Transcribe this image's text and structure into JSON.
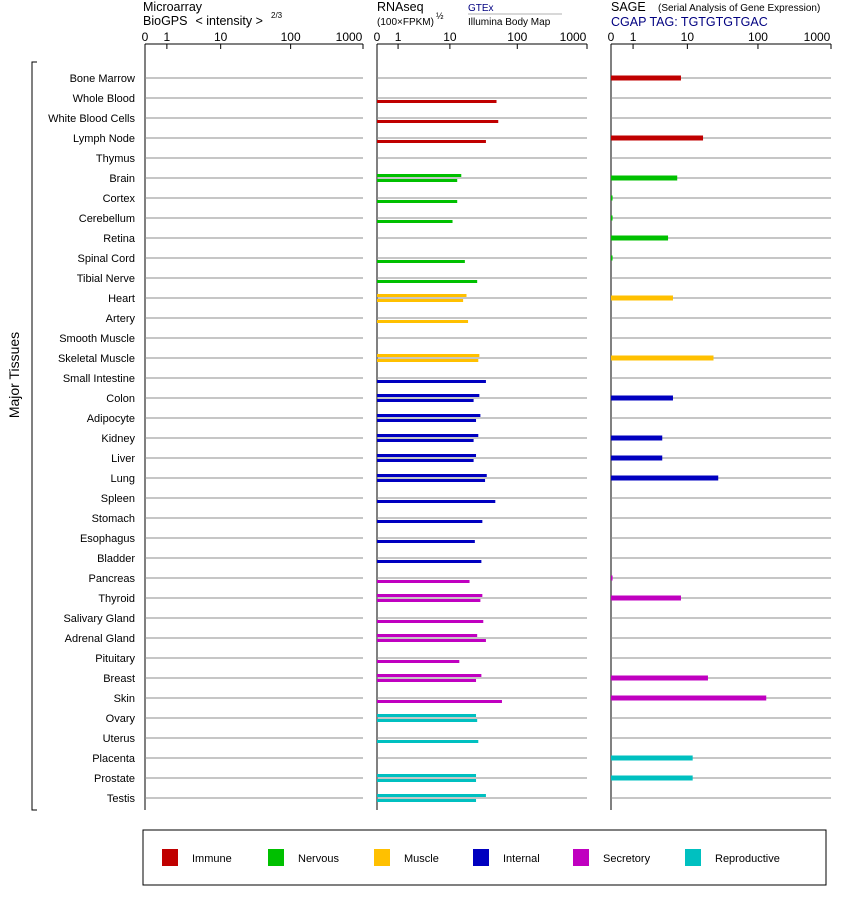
{
  "headers": {
    "microarray": {
      "line1": "Microarray",
      "line2_prefix": "BioGPS",
      "line2_suffix": "< intensity >",
      "exponent": "2/3"
    },
    "rnaseq": {
      "line1": "RNAseq",
      "line2_prefix": "(100×FPKM)",
      "exponent": "½",
      "gtex": "GTEx",
      "illumina": "Illumina Body Map"
    },
    "sage": {
      "line1": "SAGE",
      "subtitle": "(Serial Analysis of Gene Expression)",
      "tag": "CGAP TAG: TGTGTGTGAC"
    }
  },
  "y_axis_label": "Major Tissues",
  "tick_labels": [
    "0",
    "1",
    "10",
    "100",
    "1000"
  ],
  "colors": {
    "Immune": "#c00000",
    "Nervous": "#00c000",
    "Muscle": "#ffc000",
    "Internal": "#0000c0",
    "Secretory": "#c000c0",
    "Reproductive": "#00c0c0"
  },
  "legend": [
    {
      "label": "Immune",
      "color": "#c00000"
    },
    {
      "label": "Nervous",
      "color": "#00c000"
    },
    {
      "label": "Muscle",
      "color": "#ffc000"
    },
    {
      "label": "Internal",
      "color": "#0000c0"
    },
    {
      "label": "Secretory",
      "color": "#c000c0"
    },
    {
      "label": "Reproductive",
      "color": "#00c0c0"
    }
  ],
  "chart_data": {
    "type": "bar",
    "orientation": "horizontal",
    "x_scale": "log (value+1)",
    "xlim": [
      0,
      1000
    ],
    "panels": [
      "Microarray",
      "RNAseq",
      "SAGE"
    ],
    "tissues": [
      {
        "name": "Bone Marrow",
        "group": "Immune",
        "microarray": [],
        "rnaseq": [],
        "sage": [
          8
        ]
      },
      {
        "name": "Whole Blood",
        "group": "Immune",
        "microarray": [],
        "rnaseq": [
          50
        ],
        "sage": []
      },
      {
        "name": "White Blood Cells",
        "group": "Immune",
        "microarray": [],
        "rnaseq": [
          53
        ],
        "sage": []
      },
      {
        "name": "Lymph Node",
        "group": "Immune",
        "microarray": [],
        "rnaseq": [
          35
        ],
        "sage": [
          17
        ]
      },
      {
        "name": "Thymus",
        "group": "Immune",
        "microarray": [],
        "rnaseq": [],
        "sage": []
      },
      {
        "name": "Brain",
        "group": "Nervous",
        "microarray": [],
        "rnaseq": [
          15,
          13
        ],
        "sage": [
          7
        ]
      },
      {
        "name": "Cortex",
        "group": "Nervous",
        "microarray": [],
        "rnaseq": [
          13
        ],
        "sage": [
          0.05
        ]
      },
      {
        "name": "Cerebellum",
        "group": "Nervous",
        "microarray": [],
        "rnaseq": [
          11
        ],
        "sage": [
          0.05
        ]
      },
      {
        "name": "Retina",
        "group": "Nervous",
        "microarray": [],
        "rnaseq": [],
        "sage": [
          5
        ]
      },
      {
        "name": "Spinal Cord",
        "group": "Nervous",
        "microarray": [],
        "rnaseq": [
          17
        ],
        "sage": [
          0.05
        ]
      },
      {
        "name": "Tibial Nerve",
        "group": "Nervous",
        "microarray": [],
        "rnaseq": [
          26
        ],
        "sage": []
      },
      {
        "name": "Heart",
        "group": "Muscle",
        "microarray": [],
        "rnaseq": [
          18,
          16
        ],
        "sage": [
          6
        ]
      },
      {
        "name": "Artery",
        "group": "Muscle",
        "microarray": [],
        "rnaseq": [
          19
        ],
        "sage": []
      },
      {
        "name": "Smooth Muscle",
        "group": "Muscle",
        "microarray": [],
        "rnaseq": [],
        "sage": []
      },
      {
        "name": "Skeletal Muscle",
        "group": "Muscle",
        "microarray": [],
        "rnaseq": [
          28,
          27
        ],
        "sage": [
          24
        ]
      },
      {
        "name": "Small Intestine",
        "group": "Internal",
        "microarray": [],
        "rnaseq": [
          35
        ],
        "sage": []
      },
      {
        "name": "Colon",
        "group": "Internal",
        "microarray": [],
        "rnaseq": [
          28,
          23
        ],
        "sage": [
          6
        ]
      },
      {
        "name": "Adipocyte",
        "group": "Internal",
        "microarray": [],
        "rnaseq": [
          29,
          25
        ],
        "sage": []
      },
      {
        "name": "Kidney",
        "group": "Internal",
        "microarray": [],
        "rnaseq": [
          27,
          23
        ],
        "sage": [
          4
        ]
      },
      {
        "name": "Liver",
        "group": "Internal",
        "microarray": [],
        "rnaseq": [
          25,
          23
        ],
        "sage": [
          4
        ]
      },
      {
        "name": "Lung",
        "group": "Internal",
        "microarray": [],
        "rnaseq": [
          36,
          34
        ],
        "sage": [
          28
        ]
      },
      {
        "name": "Spleen",
        "group": "Internal",
        "microarray": [],
        "rnaseq": [
          48
        ],
        "sage": []
      },
      {
        "name": "Stomach",
        "group": "Internal",
        "microarray": [],
        "rnaseq": [
          31
        ],
        "sage": []
      },
      {
        "name": "Esophagus",
        "group": "Internal",
        "microarray": [],
        "rnaseq": [
          24
        ],
        "sage": []
      },
      {
        "name": "Bladder",
        "group": "Internal",
        "microarray": [],
        "rnaseq": [
          30
        ],
        "sage": []
      },
      {
        "name": "Pancreas",
        "group": "Secretory",
        "microarray": [],
        "rnaseq": [
          20
        ],
        "sage": [
          0.05
        ]
      },
      {
        "name": "Thyroid",
        "group": "Secretory",
        "microarray": [],
        "rnaseq": [
          31,
          29
        ],
        "sage": [
          8
        ]
      },
      {
        "name": "Salivary Gland",
        "group": "Secretory",
        "microarray": [],
        "rnaseq": [
          32
        ],
        "sage": []
      },
      {
        "name": "Adrenal Gland",
        "group": "Secretory",
        "microarray": [],
        "rnaseq": [
          26,
          35
        ],
        "sage": []
      },
      {
        "name": "Pituitary",
        "group": "Secretory",
        "microarray": [],
        "rnaseq": [
          14
        ],
        "sage": []
      },
      {
        "name": "Breast",
        "group": "Secretory",
        "microarray": [],
        "rnaseq": [
          30,
          25
        ],
        "sage": [
          20
        ]
      },
      {
        "name": "Skin",
        "group": "Secretory",
        "microarray": [],
        "rnaseq": [
          60
        ],
        "sage": [
          130
        ]
      },
      {
        "name": "Ovary",
        "group": "Reproductive",
        "microarray": [],
        "rnaseq": [
          25,
          26
        ],
        "sage": []
      },
      {
        "name": "Uterus",
        "group": "Reproductive",
        "microarray": [],
        "rnaseq": [
          27
        ],
        "sage": []
      },
      {
        "name": "Placenta",
        "group": "Reproductive",
        "microarray": [],
        "rnaseq": [],
        "sage": [
          12
        ]
      },
      {
        "name": "Prostate",
        "group": "Reproductive",
        "microarray": [],
        "rnaseq": [
          25,
          25
        ],
        "sage": [
          12
        ]
      },
      {
        "name": "Testis",
        "group": "Reproductive",
        "microarray": [],
        "rnaseq": [
          35,
          25
        ],
        "sage": []
      }
    ]
  }
}
